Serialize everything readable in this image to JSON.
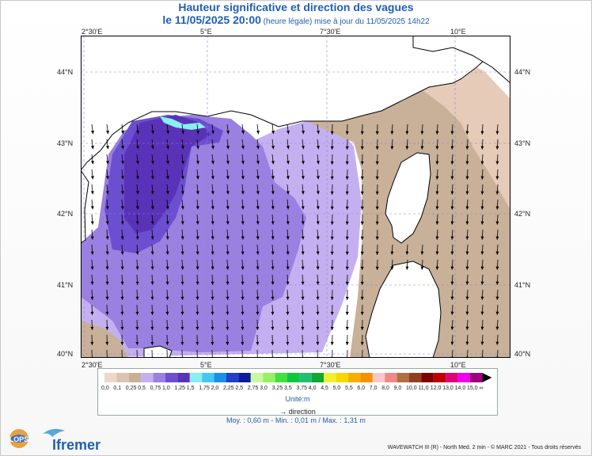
{
  "title": {
    "line1": "Hauteur significative et direction des vagues",
    "line2_main": "le 11/05/2025 20:00",
    "line2_sub": " (heure légale) mise à jour du 11/05/2025 14h22"
  },
  "axes": {
    "lon_labels": [
      "2°30'E",
      "5°E",
      "7°30'E",
      "10°E"
    ],
    "lat_labels": [
      "44°N",
      "43°N",
      "42°N",
      "41°N",
      "40°N"
    ]
  },
  "colorbar": {
    "labels": [
      "0,0",
      "0,1",
      "0,25",
      "0,5",
      "0,75",
      "1,0",
      "1,25",
      "1,5",
      "1,75",
      "2,0",
      "2,25",
      "2,5",
      "2,75",
      "3,0",
      "3,25",
      "3,5",
      "3,75",
      "4,0",
      "4,5",
      "5,0",
      "5,5",
      "6,0",
      "7,0",
      "8,0",
      "9,0",
      "10,0",
      "11,0",
      "12,0",
      "13,0",
      "14,0",
      "15,0",
      "∞"
    ],
    "colors": [
      "#eed8c8",
      "#dcc4b2",
      "#c8b099",
      "#c4b0f0",
      "#9a80e0",
      "#6c4ed0",
      "#5a32b8",
      "#88f0f0",
      "#44c8f0",
      "#1890e8",
      "#2040c8",
      "#101ca0",
      "#c8f8a0",
      "#98f060",
      "#40e040",
      "#10c840",
      "#20c070",
      "#10a830",
      "#f0f030",
      "#f8d800",
      "#f8b000",
      "#f89000",
      "#f8c8c8",
      "#f08888",
      "#b07040",
      "#904020",
      "#800000",
      "#c00000",
      "#e00078",
      "#f000f0",
      "#a00080"
    ],
    "unit": "Unité:m",
    "direction_label": "direction"
  },
  "stats": "Moy. : 0,60 m  -  Min. : 0,01 m / Max. : 1,31 m",
  "map": {
    "colors": {
      "land": "#ffffff",
      "grey": "#a8a8a8",
      "tan": "#c8b099",
      "peach": "#e6cbb8",
      "light_purple": "#c4b0f0",
      "mid_purple": "#9a80e0",
      "dark_purple": "#6c4ed0",
      "deep_purple": "#5a32b8",
      "cyan": "#88f0f0"
    }
  },
  "logos": {
    "lops": "LOPS",
    "ifremer": "Ifremer"
  },
  "credit": "WAVEWATCH III (R) - North Med. 2 min - © MARC 2021 - Tous droits réservés"
}
